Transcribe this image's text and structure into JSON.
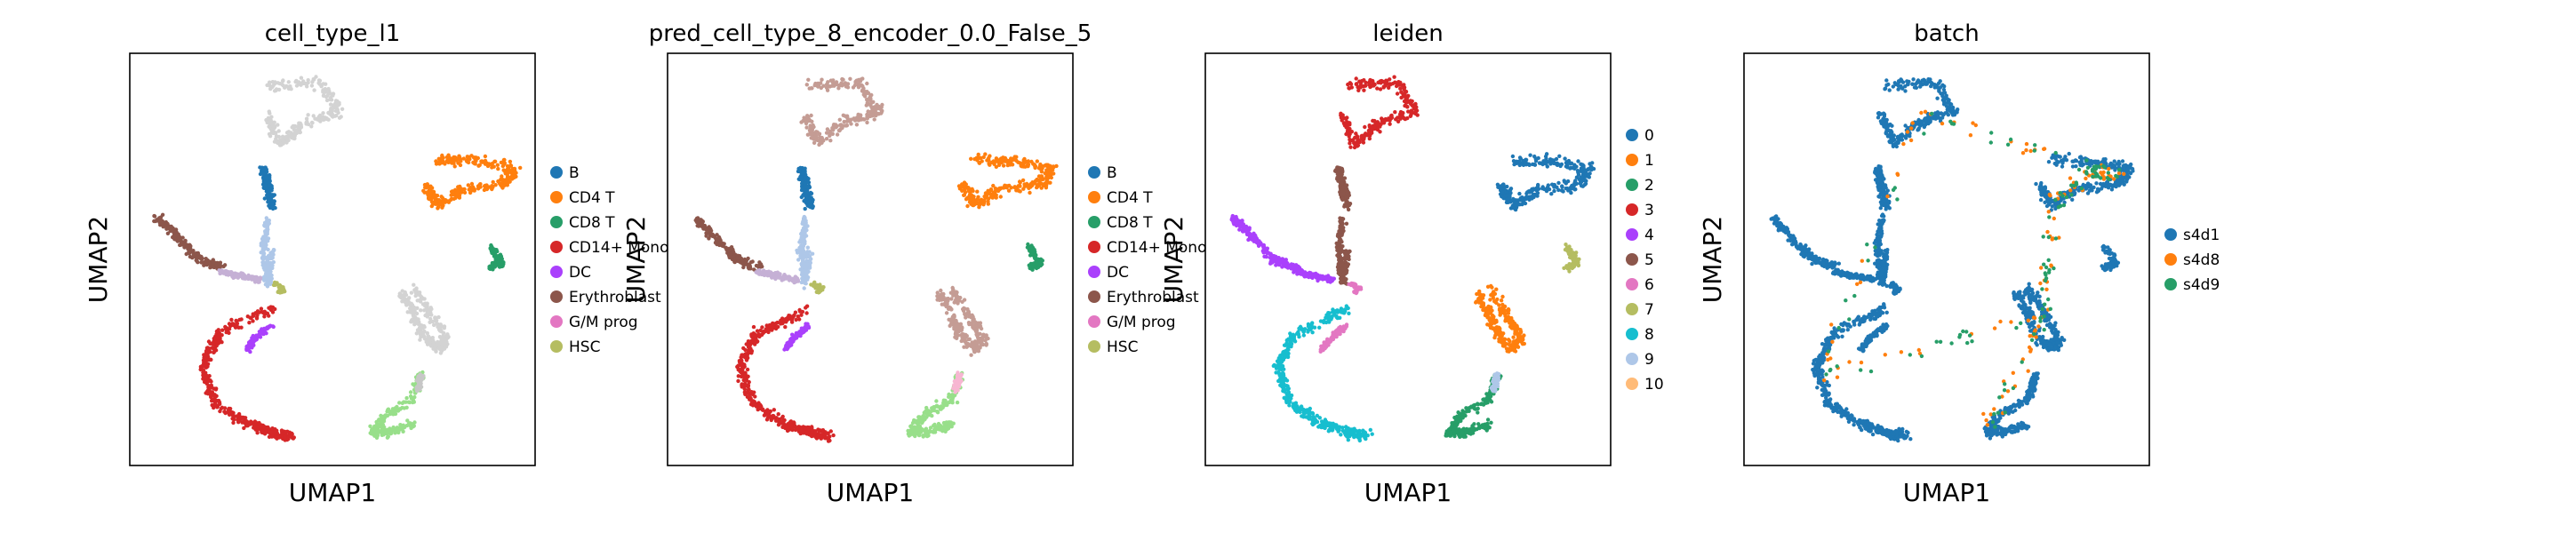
{
  "figure": {
    "description": "",
    "background": "#ffffff"
  },
  "chart_data": [
    {
      "type": "scatter",
      "title": "cell_type_l1",
      "xlabel": "UMAP1",
      "ylabel": "UMAP2",
      "grid": false,
      "legend": {
        "placement": "right",
        "entries": [
          {
            "label": "B",
            "color": "#1f77b4"
          },
          {
            "label": "CD4 T",
            "color": "#ff7f0e"
          },
          {
            "label": "CD8 T",
            "color": "#279e68"
          },
          {
            "label": "CD14+ Mono",
            "color": "#d62728"
          },
          {
            "label": "DC",
            "color": "#aa40fc"
          },
          {
            "label": "Erythroblast",
            "color": "#8c564b"
          },
          {
            "label": "G/M prog",
            "color": "#e377c2"
          },
          {
            "label": "HSC",
            "color": "#b5bd61"
          }
        ]
      },
      "clusters": [
        {
          "name": "top-column",
          "color": "#d3d3d3",
          "region": "top-column"
        },
        {
          "name": "b-column",
          "color": "#1f77b4",
          "region": "b-column"
        },
        {
          "name": "light-column",
          "color": "#aec7e8",
          "region": "light-column"
        },
        {
          "name": "cd4t-island",
          "color": "#ff7f0e",
          "region": "right-blob"
        },
        {
          "name": "cd8t-island",
          "color": "#279e68",
          "region": "small-right"
        },
        {
          "name": "mono-arc",
          "color": "#d62728",
          "region": "bottom-arc"
        },
        {
          "name": "left-arm",
          "color": "#8c564b",
          "region": "left-arm"
        },
        {
          "name": "dc-arm",
          "color": "#c5b0d5",
          "region": "dc-arm"
        },
        {
          "name": "gm-mid",
          "color": "#aa40fc",
          "region": "mid-gm"
        },
        {
          "name": "hsc-node",
          "color": "#b5bd61",
          "region": "hsc"
        },
        {
          "name": "mid-big",
          "color": "#d3d3d3",
          "region": "mid-big"
        },
        {
          "name": "bottom-right",
          "color": "#98df8a",
          "region": "bottom-right"
        },
        {
          "name": "mid-bottom",
          "color": "#c7c7c7",
          "region": "mid-bottom"
        }
      ]
    },
    {
      "type": "scatter",
      "title": "pred_cell_type_8_encoder_0.0_False_5",
      "xlabel": "UMAP1",
      "ylabel": "UMAP2",
      "grid": false,
      "legend": {
        "placement": "right",
        "entries": [
          {
            "label": "B",
            "color": "#1f77b4"
          },
          {
            "label": "CD4 T",
            "color": "#ff7f0e"
          },
          {
            "label": "CD8 T",
            "color": "#279e68"
          },
          {
            "label": "CD14+ Mono",
            "color": "#d62728"
          },
          {
            "label": "DC",
            "color": "#aa40fc"
          },
          {
            "label": "Erythroblast",
            "color": "#8c564b"
          },
          {
            "label": "G/M prog",
            "color": "#e377c2"
          },
          {
            "label": "HSC",
            "color": "#b5bd61"
          }
        ]
      },
      "clusters": [
        {
          "name": "top-column",
          "color": "#c49c94",
          "region": "top-column"
        },
        {
          "name": "b-column",
          "color": "#1f77b4",
          "region": "b-column"
        },
        {
          "name": "light-column",
          "color": "#aec7e8",
          "region": "light-column"
        },
        {
          "name": "cd4t-island",
          "color": "#ff7f0e",
          "region": "right-blob"
        },
        {
          "name": "cd8t-island",
          "color": "#279e68",
          "region": "small-right"
        },
        {
          "name": "mono-arc",
          "color": "#d62728",
          "region": "bottom-arc"
        },
        {
          "name": "left-arm",
          "color": "#8c564b",
          "region": "left-arm"
        },
        {
          "name": "dc-arm",
          "color": "#c5b0d5",
          "region": "dc-arm"
        },
        {
          "name": "gm-mid",
          "color": "#aa40fc",
          "region": "mid-gm"
        },
        {
          "name": "hsc-node",
          "color": "#b5bd61",
          "region": "hsc"
        },
        {
          "name": "mid-big",
          "color": "#c49c94",
          "region": "mid-big"
        },
        {
          "name": "bottom-right",
          "color": "#98df8a",
          "region": "bottom-right"
        },
        {
          "name": "mid-bottom",
          "color": "#f7b6d2",
          "region": "mid-bottom"
        }
      ]
    },
    {
      "type": "scatter",
      "title": "leiden",
      "xlabel": "UMAP1",
      "ylabel": "UMAP2",
      "grid": false,
      "legend": {
        "placement": "right",
        "entries": [
          {
            "label": "0",
            "color": "#1f77b4"
          },
          {
            "label": "1",
            "color": "#ff7f0e"
          },
          {
            "label": "2",
            "color": "#279e68"
          },
          {
            "label": "3",
            "color": "#d62728"
          },
          {
            "label": "4",
            "color": "#aa40fc"
          },
          {
            "label": "5",
            "color": "#8c564b"
          },
          {
            "label": "6",
            "color": "#e377c2"
          },
          {
            "label": "7",
            "color": "#b5bd61"
          },
          {
            "label": "8",
            "color": "#17becf"
          },
          {
            "label": "9",
            "color": "#aec7e8"
          },
          {
            "label": "10",
            "color": "#ffbb78"
          }
        ]
      },
      "clusters": [
        {
          "name": "top-column",
          "color": "#d62728",
          "region": "top-column"
        },
        {
          "name": "b-column",
          "color": "#8c564b",
          "region": "b-column"
        },
        {
          "name": "light-column",
          "color": "#8c564b",
          "region": "light-column"
        },
        {
          "name": "cd4t-island",
          "color": "#1f77b4",
          "region": "right-blob"
        },
        {
          "name": "cd8t-island",
          "color": "#b5bd61",
          "region": "small-right"
        },
        {
          "name": "mono-arc",
          "color": "#17becf",
          "region": "bottom-arc"
        },
        {
          "name": "left-arm",
          "color": "#aa40fc",
          "region": "left-arm"
        },
        {
          "name": "dc-arm",
          "color": "#aa40fc",
          "region": "dc-arm"
        },
        {
          "name": "gm-mid",
          "color": "#e377c2",
          "region": "mid-gm"
        },
        {
          "name": "hsc-node",
          "color": "#e377c2",
          "region": "hsc"
        },
        {
          "name": "mid-big",
          "color": "#ff7f0e",
          "region": "mid-big"
        },
        {
          "name": "bottom-right",
          "color": "#279e68",
          "region": "bottom-right"
        },
        {
          "name": "mid-bottom",
          "color": "#aec7e8",
          "region": "mid-bottom"
        }
      ]
    },
    {
      "type": "scatter",
      "title": "batch",
      "xlabel": "UMAP1",
      "ylabel": "UMAP2",
      "grid": false,
      "legend": {
        "placement": "right",
        "entries": [
          {
            "label": "s4d1",
            "color": "#1f77b4"
          },
          {
            "label": "s4d8",
            "color": "#ff7f0e"
          },
          {
            "label": "s4d9",
            "color": "#279e68"
          }
        ]
      },
      "clusters": [
        {
          "name": "top-column",
          "color": "#1f77b4",
          "region": "top-column"
        },
        {
          "name": "b-column",
          "color": "#1f77b4",
          "region": "b-column"
        },
        {
          "name": "light-column",
          "color": "#1f77b4",
          "region": "light-column"
        },
        {
          "name": "cd4t-island",
          "color": "#1f77b4",
          "region": "right-blob"
        },
        {
          "name": "cd8t-island",
          "color": "#1f77b4",
          "region": "small-right"
        },
        {
          "name": "mono-arc",
          "color": "#1f77b4",
          "region": "bottom-arc"
        },
        {
          "name": "left-arm",
          "color": "#1f77b4",
          "region": "left-arm"
        },
        {
          "name": "dc-arm",
          "color": "#1f77b4",
          "region": "dc-arm"
        },
        {
          "name": "gm-mid",
          "color": "#1f77b4",
          "region": "mid-gm"
        },
        {
          "name": "hsc-node",
          "color": "#1f77b4",
          "region": "hsc"
        },
        {
          "name": "mid-big",
          "color": "#1f77b4",
          "region": "mid-big"
        },
        {
          "name": "bottom-right",
          "color": "#1f77b4",
          "region": "bottom-right"
        },
        {
          "name": "mid-bottom",
          "color": "#1f77b4",
          "region": "mid-bottom"
        },
        {
          "name": "batch-mix-s4d8",
          "color": "#ff7f0e",
          "region": "mix"
        },
        {
          "name": "batch-mix-s4d9",
          "color": "#279e68",
          "region": "mix"
        }
      ]
    }
  ]
}
